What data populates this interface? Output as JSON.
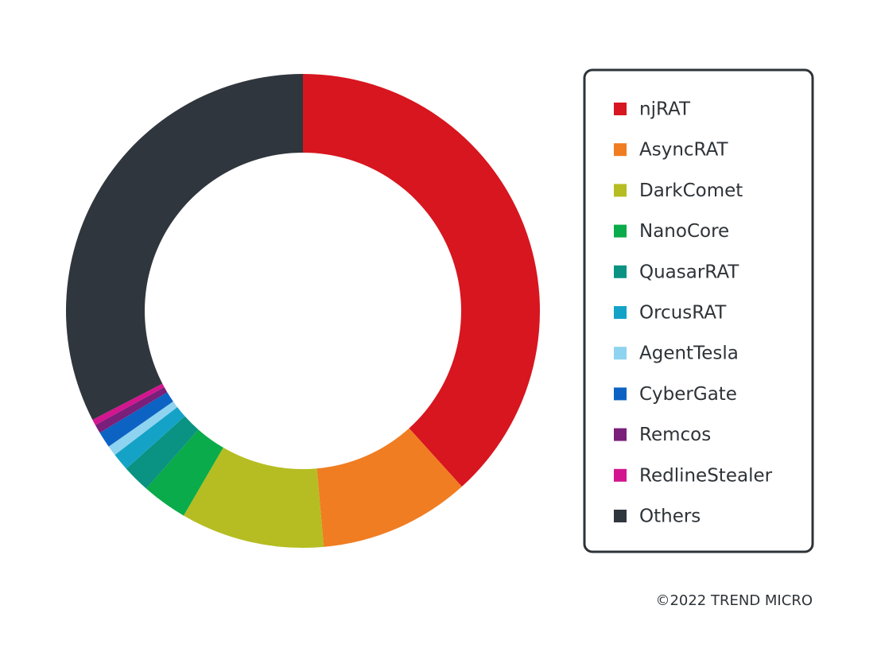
{
  "chart_data": {
    "type": "donut",
    "categories": [
      "njRAT",
      "AsyncRAT",
      "DarkComet",
      "NanoCore",
      "QuasarRAT",
      "OrcusRAT",
      "AgentTesla",
      "CyberGate",
      "Remcos",
      "RedlineStealer",
      "Others"
    ],
    "values": [
      38.3,
      10.3,
      9.8,
      3.1,
      1.9,
      1.2,
      0.7,
      1.1,
      0.6,
      0.4,
      32.6
    ],
    "colors": [
      "#d7161f",
      "#f07d22",
      "#b5bd22",
      "#0aab4a",
      "#0a9282",
      "#14a3c7",
      "#8ed3f0",
      "#0c63c3",
      "#7a1f7a",
      "#d3158f",
      "#30363d"
    ],
    "legend": "right",
    "footer": "©2022 TREND MICRO"
  }
}
